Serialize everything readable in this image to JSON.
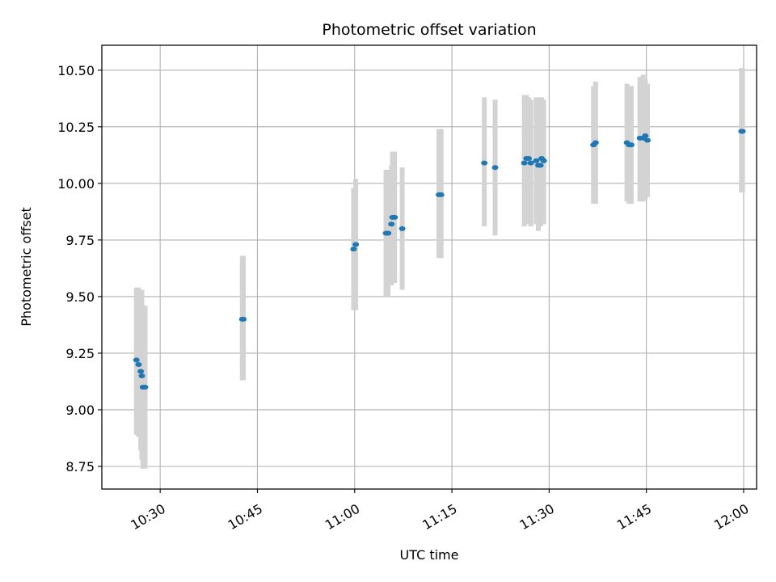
{
  "chart_data": {
    "type": "scatter",
    "title": "Photometric offset variation",
    "xlabel": "UTC time",
    "ylabel": "Photometric offset",
    "grid": true,
    "x_axis_type": "time",
    "xlim": [
      "10:21",
      "12:02"
    ],
    "ylim": [
      8.65,
      10.61
    ],
    "x_ticks": [
      "10:30",
      "10:45",
      "11:00",
      "11:15",
      "11:30",
      "11:45",
      "12:00"
    ],
    "y_ticks": [
      "8.75",
      "9.00",
      "9.25",
      "9.50",
      "9.75",
      "10.00",
      "10.25",
      "10.50"
    ],
    "colors": {
      "point": "#1f77b4",
      "errorbar": "#d3d3d3",
      "grid": "#b0b0b0"
    },
    "series": [
      {
        "points": [
          {
            "x": "10:26:20",
            "y": 9.22,
            "ylow": 8.89,
            "yhigh": 9.54
          },
          {
            "x": "10:26:40",
            "y": 9.2,
            "ylow": 8.88,
            "yhigh": 9.54
          },
          {
            "x": "10:27:00",
            "y": 9.17,
            "ylow": 8.82,
            "yhigh": 9.53
          },
          {
            "x": "10:27:10",
            "y": 9.15,
            "ylow": 8.78,
            "yhigh": 9.53
          },
          {
            "x": "10:27:20",
            "y": 9.1,
            "ylow": 8.74,
            "yhigh": 9.46
          },
          {
            "x": "10:27:40",
            "y": 9.1,
            "ylow": 8.74,
            "yhigh": 9.46
          },
          {
            "x": "10:42:40",
            "y": 9.4,
            "ylow": 9.13,
            "yhigh": 9.68
          },
          {
            "x": "10:42:50",
            "y": 9.4,
            "ylow": 9.13,
            "yhigh": 9.68
          },
          {
            "x": "10:59:50",
            "y": 9.71,
            "ylow": 9.44,
            "yhigh": 9.98
          },
          {
            "x": "11:00:10",
            "y": 9.73,
            "ylow": 9.44,
            "yhigh": 10.02
          },
          {
            "x": "11:04:50",
            "y": 9.78,
            "ylow": 9.5,
            "yhigh": 10.06
          },
          {
            "x": "11:05:10",
            "y": 9.78,
            "ylow": 9.5,
            "yhigh": 10.06
          },
          {
            "x": "11:05:40",
            "y": 9.82,
            "ylow": 9.55,
            "yhigh": 10.08
          },
          {
            "x": "11:05:50",
            "y": 9.85,
            "ylow": 9.56,
            "yhigh": 10.14
          },
          {
            "x": "11:06:10",
            "y": 9.85,
            "ylow": 9.56,
            "yhigh": 10.14
          },
          {
            "x": "11:07:20",
            "y": 9.8,
            "ylow": 9.53,
            "yhigh": 10.07
          },
          {
            "x": "11:13:00",
            "y": 9.95,
            "ylow": 9.67,
            "yhigh": 10.24
          },
          {
            "x": "11:13:20",
            "y": 9.95,
            "ylow": 9.67,
            "yhigh": 10.24
          },
          {
            "x": "11:20:00",
            "y": 10.09,
            "ylow": 9.81,
            "yhigh": 10.38
          },
          {
            "x": "11:21:40",
            "y": 10.07,
            "ylow": 9.77,
            "yhigh": 10.37
          },
          {
            "x": "11:26:10",
            "y": 10.09,
            "ylow": 9.81,
            "yhigh": 10.39
          },
          {
            "x": "11:26:30",
            "y": 10.11,
            "ylow": 9.82,
            "yhigh": 10.39
          },
          {
            "x": "11:26:50",
            "y": 10.11,
            "ylow": 9.82,
            "yhigh": 10.38
          },
          {
            "x": "11:27:10",
            "y": 10.09,
            "ylow": 9.81,
            "yhigh": 10.37
          },
          {
            "x": "11:28:00",
            "y": 10.1,
            "ylow": 9.82,
            "yhigh": 10.38
          },
          {
            "x": "11:28:20",
            "y": 10.08,
            "ylow": 9.79,
            "yhigh": 10.36
          },
          {
            "x": "11:28:40",
            "y": 10.08,
            "ylow": 9.81,
            "yhigh": 10.38
          },
          {
            "x": "11:28:50",
            "y": 10.11,
            "ylow": 9.82,
            "yhigh": 10.38
          },
          {
            "x": "11:29:10",
            "y": 10.1,
            "ylow": 9.82,
            "yhigh": 10.37
          },
          {
            "x": "11:36:50",
            "y": 10.17,
            "ylow": 9.91,
            "yhigh": 10.43
          },
          {
            "x": "11:37:10",
            "y": 10.18,
            "ylow": 9.91,
            "yhigh": 10.45
          },
          {
            "x": "11:42:00",
            "y": 10.18,
            "ylow": 9.92,
            "yhigh": 10.44
          },
          {
            "x": "11:42:20",
            "y": 10.17,
            "ylow": 9.91,
            "yhigh": 10.43
          },
          {
            "x": "11:42:40",
            "y": 10.17,
            "ylow": 9.91,
            "yhigh": 10.43
          },
          {
            "x": "11:44:00",
            "y": 10.2,
            "ylow": 9.92,
            "yhigh": 10.47
          },
          {
            "x": "11:44:30",
            "y": 10.2,
            "ylow": 9.92,
            "yhigh": 10.48
          },
          {
            "x": "11:44:50",
            "y": 10.21,
            "ylow": 9.93,
            "yhigh": 10.46
          },
          {
            "x": "11:45:10",
            "y": 10.19,
            "ylow": 9.94,
            "yhigh": 10.44
          },
          {
            "x": "11:59:40",
            "y": 10.23,
            "ylow": 9.96,
            "yhigh": 10.51
          },
          {
            "x": "11:59:50",
            "y": 10.23,
            "ylow": 9.96,
            "yhigh": 10.51
          }
        ]
      }
    ]
  }
}
